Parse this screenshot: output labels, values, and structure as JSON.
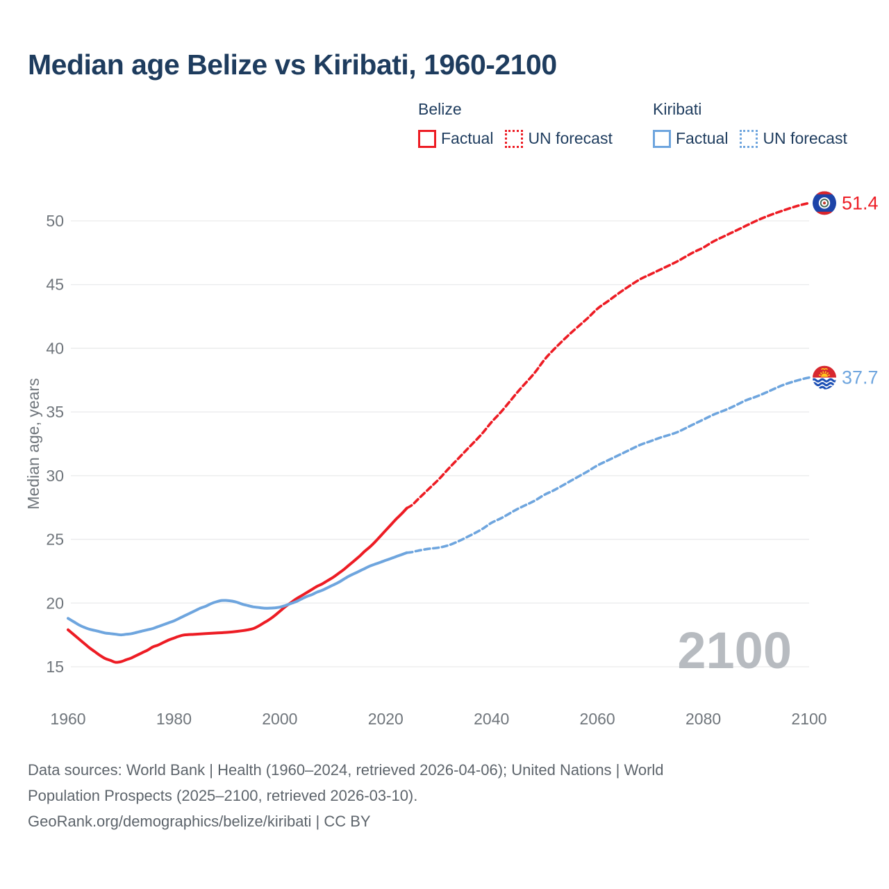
{
  "title": "Median age Belize vs Kiribati, 1960-2100",
  "legend": {
    "groups": [
      {
        "name": "Belize",
        "color": "#ed1c24",
        "items": [
          {
            "label": "Factual",
            "style": "solid"
          },
          {
            "label": "UN forecast",
            "style": "dotted"
          }
        ]
      },
      {
        "name": "Kiribati",
        "color": "#6ea5de",
        "items": [
          {
            "label": "Factual",
            "style": "solid"
          },
          {
            "label": "UN forecast",
            "style": "dotted"
          }
        ]
      }
    ]
  },
  "chart_data": {
    "type": "line",
    "title": "Median age Belize vs Kiribati, 1960-2100",
    "xlabel": "",
    "ylabel": "Median age, years",
    "x_ticks": [
      1960,
      1980,
      2000,
      2020,
      2040,
      2060,
      2080,
      2100
    ],
    "y_ticks": [
      15,
      20,
      25,
      30,
      35,
      40,
      45,
      50
    ],
    "xlim": [
      1960,
      2100
    ],
    "ylim": [
      13,
      53
    ],
    "grid": true,
    "legend_position": "top-right",
    "watermark": "2100",
    "colors": {
      "belize": "#ed1c24",
      "kiribati": "#6ea5de",
      "gridline": "#e9eaeb",
      "tick_text": "#6f757b",
      "watermark": "#b7bbc0"
    },
    "series": [
      {
        "name": "Belize Factual",
        "color": "#ed1c24",
        "style": "solid",
        "points": [
          [
            1960,
            17.9
          ],
          [
            1961,
            17.55
          ],
          [
            1962,
            17.2
          ],
          [
            1963,
            16.85
          ],
          [
            1964,
            16.5
          ],
          [
            1965,
            16.2
          ],
          [
            1966,
            15.9
          ],
          [
            1967,
            15.65
          ],
          [
            1968,
            15.5
          ],
          [
            1969,
            15.35
          ],
          [
            1970,
            15.4
          ],
          [
            1971,
            15.55
          ],
          [
            1972,
            15.7
          ],
          [
            1973,
            15.9
          ],
          [
            1974,
            16.1
          ],
          [
            1975,
            16.3
          ],
          [
            1976,
            16.55
          ],
          [
            1977,
            16.7
          ],
          [
            1978,
            16.9
          ],
          [
            1979,
            17.1
          ],
          [
            1980,
            17.25
          ],
          [
            1981,
            17.4
          ],
          [
            1982,
            17.5
          ],
          [
            1984,
            17.55
          ],
          [
            1986,
            17.6
          ],
          [
            1988,
            17.65
          ],
          [
            1990,
            17.7
          ],
          [
            1992,
            17.78
          ],
          [
            1994,
            17.9
          ],
          [
            1995,
            18.0
          ],
          [
            1996,
            18.2
          ],
          [
            1997,
            18.45
          ],
          [
            1998,
            18.7
          ],
          [
            1999,
            19.0
          ],
          [
            2000,
            19.35
          ],
          [
            2001,
            19.7
          ],
          [
            2002,
            20.0
          ],
          [
            2003,
            20.3
          ],
          [
            2004,
            20.55
          ],
          [
            2005,
            20.8
          ],
          [
            2006,
            21.05
          ],
          [
            2007,
            21.3
          ],
          [
            2008,
            21.5
          ],
          [
            2009,
            21.75
          ],
          [
            2010,
            22.0
          ],
          [
            2011,
            22.3
          ],
          [
            2012,
            22.6
          ],
          [
            2013,
            22.95
          ],
          [
            2014,
            23.3
          ],
          [
            2015,
            23.65
          ],
          [
            2016,
            24.05
          ],
          [
            2017,
            24.4
          ],
          [
            2018,
            24.8
          ],
          [
            2019,
            25.25
          ],
          [
            2020,
            25.7
          ],
          [
            2021,
            26.15
          ],
          [
            2022,
            26.6
          ],
          [
            2023,
            27.0
          ],
          [
            2024,
            27.45
          ]
        ]
      },
      {
        "name": "Belize UN forecast",
        "color": "#ed1c24",
        "style": "dashed",
        "end_label": "51.4",
        "flag": "belize",
        "points": [
          [
            2024,
            27.45
          ],
          [
            2025,
            27.7
          ],
          [
            2026,
            28.1
          ],
          [
            2028,
            28.9
          ],
          [
            2030,
            29.7
          ],
          [
            2032,
            30.6
          ],
          [
            2035,
            31.9
          ],
          [
            2038,
            33.2
          ],
          [
            2040,
            34.2
          ],
          [
            2042,
            35.1
          ],
          [
            2045,
            36.6
          ],
          [
            2048,
            38.0
          ],
          [
            2050,
            39.1
          ],
          [
            2052,
            40.0
          ],
          [
            2055,
            41.2
          ],
          [
            2058,
            42.3
          ],
          [
            2060,
            43.1
          ],
          [
            2062,
            43.7
          ],
          [
            2065,
            44.6
          ],
          [
            2068,
            45.4
          ],
          [
            2070,
            45.8
          ],
          [
            2072,
            46.2
          ],
          [
            2075,
            46.8
          ],
          [
            2078,
            47.5
          ],
          [
            2080,
            47.9
          ],
          [
            2082,
            48.4
          ],
          [
            2085,
            49.0
          ],
          [
            2088,
            49.6
          ],
          [
            2090,
            50.0
          ],
          [
            2092,
            50.35
          ],
          [
            2095,
            50.8
          ],
          [
            2098,
            51.2
          ],
          [
            2100,
            51.4
          ]
        ]
      },
      {
        "name": "Kiribati Factual",
        "color": "#6ea5de",
        "style": "solid",
        "points": [
          [
            1960,
            18.8
          ],
          [
            1961,
            18.55
          ],
          [
            1962,
            18.3
          ],
          [
            1963,
            18.1
          ],
          [
            1964,
            17.95
          ],
          [
            1965,
            17.85
          ],
          [
            1966,
            17.75
          ],
          [
            1967,
            17.65
          ],
          [
            1968,
            17.6
          ],
          [
            1969,
            17.55
          ],
          [
            1970,
            17.5
          ],
          [
            1971,
            17.55
          ],
          [
            1972,
            17.6
          ],
          [
            1973,
            17.7
          ],
          [
            1974,
            17.8
          ],
          [
            1975,
            17.9
          ],
          [
            1976,
            18.0
          ],
          [
            1977,
            18.15
          ],
          [
            1978,
            18.3
          ],
          [
            1979,
            18.45
          ],
          [
            1980,
            18.6
          ],
          [
            1981,
            18.8
          ],
          [
            1982,
            19.0
          ],
          [
            1983,
            19.2
          ],
          [
            1984,
            19.4
          ],
          [
            1985,
            19.6
          ],
          [
            1986,
            19.75
          ],
          [
            1987,
            19.95
          ],
          [
            1988,
            20.1
          ],
          [
            1989,
            20.2
          ],
          [
            1990,
            20.2
          ],
          [
            1991,
            20.15
          ],
          [
            1992,
            20.05
          ],
          [
            1993,
            19.9
          ],
          [
            1994,
            19.8
          ],
          [
            1995,
            19.7
          ],
          [
            1996,
            19.65
          ],
          [
            1997,
            19.6
          ],
          [
            1998,
            19.6
          ],
          [
            1999,
            19.62
          ],
          [
            2000,
            19.68
          ],
          [
            2001,
            19.8
          ],
          [
            2002,
            19.95
          ],
          [
            2003,
            20.1
          ],
          [
            2004,
            20.3
          ],
          [
            2005,
            20.5
          ],
          [
            2006,
            20.65
          ],
          [
            2007,
            20.85
          ],
          [
            2008,
            21.0
          ],
          [
            2009,
            21.2
          ],
          [
            2010,
            21.4
          ],
          [
            2011,
            21.6
          ],
          [
            2012,
            21.85
          ],
          [
            2013,
            22.1
          ],
          [
            2014,
            22.3
          ],
          [
            2015,
            22.5
          ],
          [
            2016,
            22.7
          ],
          [
            2017,
            22.9
          ],
          [
            2018,
            23.05
          ],
          [
            2019,
            23.2
          ],
          [
            2020,
            23.35
          ],
          [
            2021,
            23.5
          ],
          [
            2022,
            23.65
          ],
          [
            2023,
            23.8
          ],
          [
            2024,
            23.95
          ]
        ]
      },
      {
        "name": "Kiribati UN forecast",
        "color": "#6ea5de",
        "style": "dashed",
        "end_label": "37.7",
        "flag": "kiribati",
        "points": [
          [
            2024,
            23.95
          ],
          [
            2025,
            24.0
          ],
          [
            2026,
            24.1
          ],
          [
            2028,
            24.25
          ],
          [
            2030,
            24.35
          ],
          [
            2032,
            24.55
          ],
          [
            2034,
            24.9
          ],
          [
            2035,
            25.1
          ],
          [
            2038,
            25.75
          ],
          [
            2040,
            26.3
          ],
          [
            2042,
            26.7
          ],
          [
            2045,
            27.4
          ],
          [
            2048,
            28.0
          ],
          [
            2050,
            28.5
          ],
          [
            2052,
            28.9
          ],
          [
            2055,
            29.6
          ],
          [
            2058,
            30.3
          ],
          [
            2060,
            30.8
          ],
          [
            2062,
            31.2
          ],
          [
            2065,
            31.8
          ],
          [
            2068,
            32.4
          ],
          [
            2070,
            32.7
          ],
          [
            2072,
            33.0
          ],
          [
            2075,
            33.4
          ],
          [
            2078,
            34.0
          ],
          [
            2080,
            34.4
          ],
          [
            2082,
            34.8
          ],
          [
            2085,
            35.3
          ],
          [
            2088,
            35.9
          ],
          [
            2090,
            36.2
          ],
          [
            2092,
            36.55
          ],
          [
            2095,
            37.1
          ],
          [
            2098,
            37.5
          ],
          [
            2100,
            37.7
          ]
        ]
      }
    ]
  },
  "annotations": {
    "belize_end_value": "51.4",
    "kiribati_end_value": "37.7"
  },
  "source": {
    "line1": "Data sources: World Bank | Health (1960–2024, retrieved 2026-04-06); United Nations | World",
    "line2": "Population Prospects (2025–2100, retrieved 2026-03-10).",
    "line3": "GeoRank.org/demographics/belize/kiribati | CC BY"
  }
}
